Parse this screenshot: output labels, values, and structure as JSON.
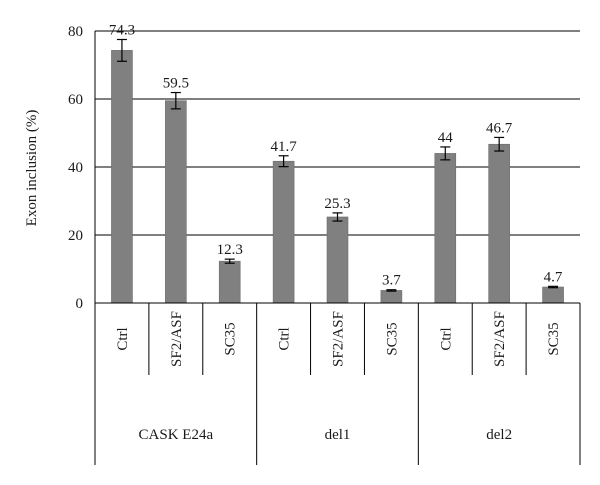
{
  "chart_data": {
    "type": "bar",
    "ylabel": "Exon inclusion (%)",
    "ylim": [
      0,
      80
    ],
    "yticks": [
      0,
      20,
      40,
      60,
      80
    ],
    "grid": true,
    "categories": [
      "Ctrl",
      "SF2/ASF",
      "SC35",
      "Ctrl",
      "SF2/ASF",
      "SC35",
      "Ctrl",
      "SF2/ASF",
      "SC35"
    ],
    "groups": [
      {
        "label": "CASK E24a",
        "count": 3
      },
      {
        "label": "del1",
        "count": 3
      },
      {
        "label": "del2",
        "count": 3
      }
    ],
    "values": [
      74.3,
      59.5,
      12.3,
      41.7,
      25.3,
      3.7,
      44,
      46.7,
      4.7
    ],
    "value_labels": [
      "74.3",
      "59.5",
      "12.3",
      "41.7",
      "25.3",
      "3.7",
      "44",
      "46.7",
      "4.7"
    ],
    "errors": [
      3.2,
      2.4,
      0.6,
      1.6,
      1.2,
      0.2,
      1.9,
      2.0,
      0.2
    ],
    "bar_color": "#808080"
  }
}
